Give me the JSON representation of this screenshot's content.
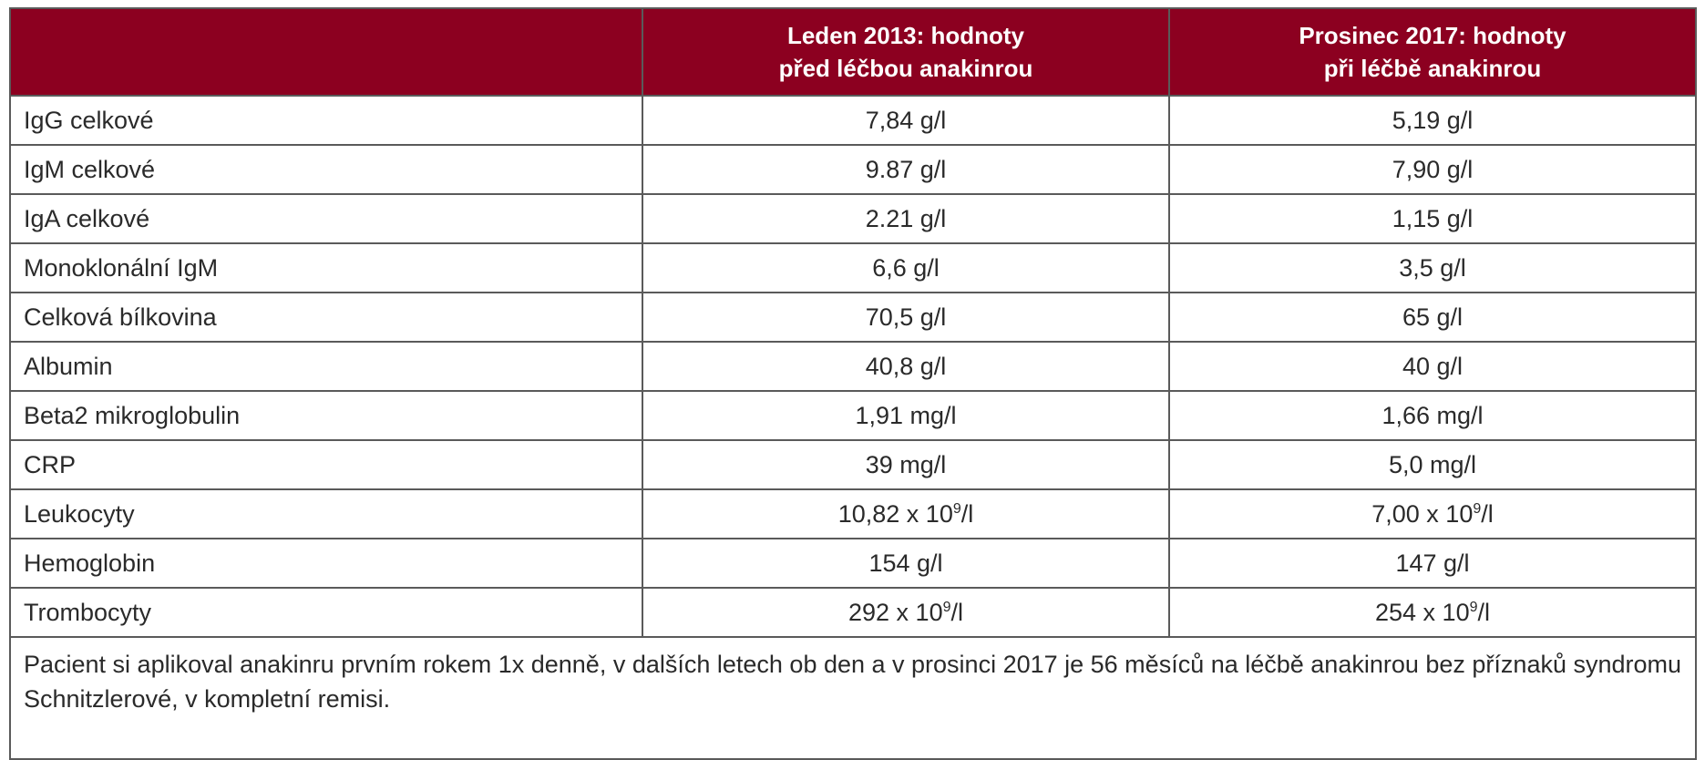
{
  "table": {
    "headers": {
      "col1": "",
      "col2": [
        "Leden 2013: hodnoty",
        "před léčbou anakinrou"
      ],
      "col3": [
        "Prosinec 2017: hodnoty",
        "při léčbě anakinrou"
      ]
    },
    "rows": [
      {
        "label": "IgG celkové",
        "v2013": "7,84 g/l",
        "v2017": "5,19 g/l"
      },
      {
        "label": "IgM celkové",
        "v2013": "9.87 g/l",
        "v2017": "7,90 g/l"
      },
      {
        "label": "IgA celkové",
        "v2013": "2.21 g/l",
        "v2017": "1,15 g/l"
      },
      {
        "label": "Monoklonální IgM",
        "v2013": "6,6 g/l",
        "v2017": "3,5 g/l"
      },
      {
        "label": "Celková bílkovina",
        "v2013": "70,5 g/l",
        "v2017": "65 g/l"
      },
      {
        "label": "Albumin",
        "v2013": "40,8 g/l",
        "v2017": "40 g/l"
      },
      {
        "label": "Beta2 mikroglobulin",
        "v2013": "1,91 mg/l",
        "v2017": "1,66 mg/l"
      },
      {
        "label": "CRP",
        "v2013": "39 mg/l",
        "v2017": "5,0 mg/l"
      },
      {
        "label": "Leukocyty",
        "v2013": {
          "pre": "10,82 x 10",
          "exp": "9",
          "post": "/l"
        },
        "v2017": {
          "pre": "7,00 x 10",
          "exp": "9",
          "post": "/l"
        }
      },
      {
        "label": "Hemoglobin",
        "v2013": "154 g/l",
        "v2017": "147 g/l"
      },
      {
        "label": "Trombocyty",
        "v2013": {
          "pre": "292 x 10",
          "exp": "9",
          "post": "/l"
        },
        "v2017": {
          "pre": "254 x 10",
          "exp": "9",
          "post": "/l"
        }
      }
    ],
    "note": "Pacient si aplikoval anakinru prvním rokem 1x denně, v dalších letech ob den a v prosinci 2017 je 56 měsíců na léčbě anakinrou bez příznaků syndromu Schnitzlerové, v kompletní remisi."
  },
  "colors": {
    "header_bg": "#8c0020",
    "header_text": "#ffffff",
    "border": "#5a5a5a"
  }
}
